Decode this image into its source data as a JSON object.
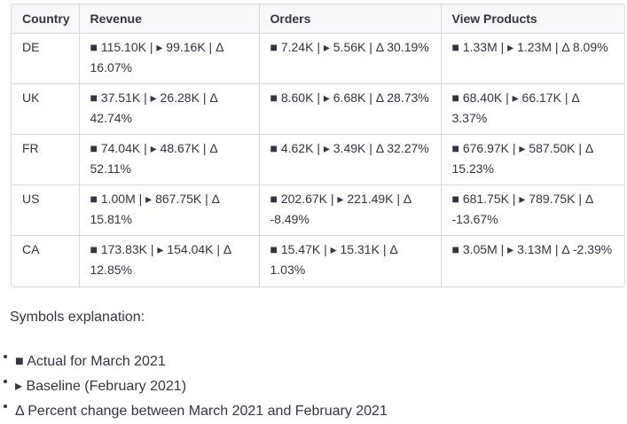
{
  "table": {
    "headers": [
      "Country",
      "Revenue",
      "Orders",
      "View Products"
    ],
    "rows": [
      [
        "DE",
        "■ 115.10K | ▸ 99.16K | Δ 16.07%",
        "■ 7.24K | ▸ 5.56K | Δ 30.19%",
        "■ 1.33M | ▸ 1.23M | Δ 8.09%"
      ],
      [
        "UK",
        "■ 37.51K | ▸ 26.28K | Δ 42.74%",
        "■ 8.60K | ▸ 6.68K | Δ 28.73%",
        "■ 68.40K | ▸ 66.17K | Δ 3.37%"
      ],
      [
        "FR",
        "■ 74.04K | ▸ 48.67K | Δ 52.11%",
        "■ 4.62K | ▸ 3.49K | Δ 32.27%",
        "■ 676.97K | ▸ 587.50K | Δ 15.23%"
      ],
      [
        "US",
        "■ 1.00M | ▸ 867.75K | Δ 15.81%",
        "■ 202.67K | ▸ 221.49K | Δ -8.49%",
        "■ 681.75K | ▸ 789.75K | Δ -13.67%"
      ],
      [
        "CA",
        "■ 173.83K | ▸ 154.04K | Δ 12.85%",
        "■ 15.47K | ▸ 15.31K | Δ 1.03%",
        "■ 3.05M | ▸ 3.13M | Δ -2.39%"
      ]
    ]
  },
  "explanation": {
    "title": "Symbols explanation:",
    "items": [
      "■ Actual for March 2021",
      "▸ Baseline (February 2021)",
      "Δ Percent change between March 2021 and February 2021"
    ]
  }
}
